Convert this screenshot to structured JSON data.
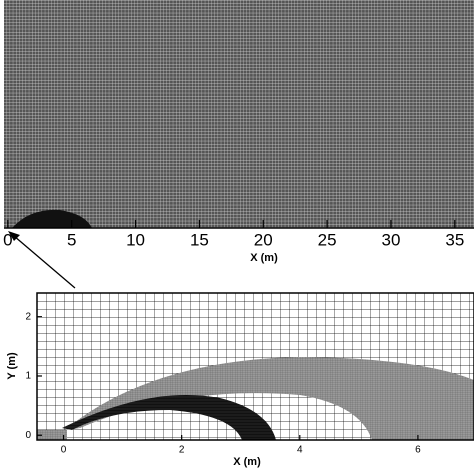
{
  "chart_data": [
    {
      "type": "mesh",
      "xlabel": "X (m)",
      "xlim": [
        -0.3,
        36.5
      ],
      "xticks": [
        0,
        5,
        10,
        15,
        20,
        25,
        30,
        35
      ]
    },
    {
      "type": "mesh",
      "xlabel": "X (m)",
      "ylabel": "Y (m)",
      "xlim": [
        -0.45,
        6.95
      ],
      "xticks": [
        0,
        2,
        4,
        6
      ],
      "ylim": [
        -0.08,
        2.4
      ],
      "yticks": [
        0,
        1,
        2
      ]
    }
  ]
}
